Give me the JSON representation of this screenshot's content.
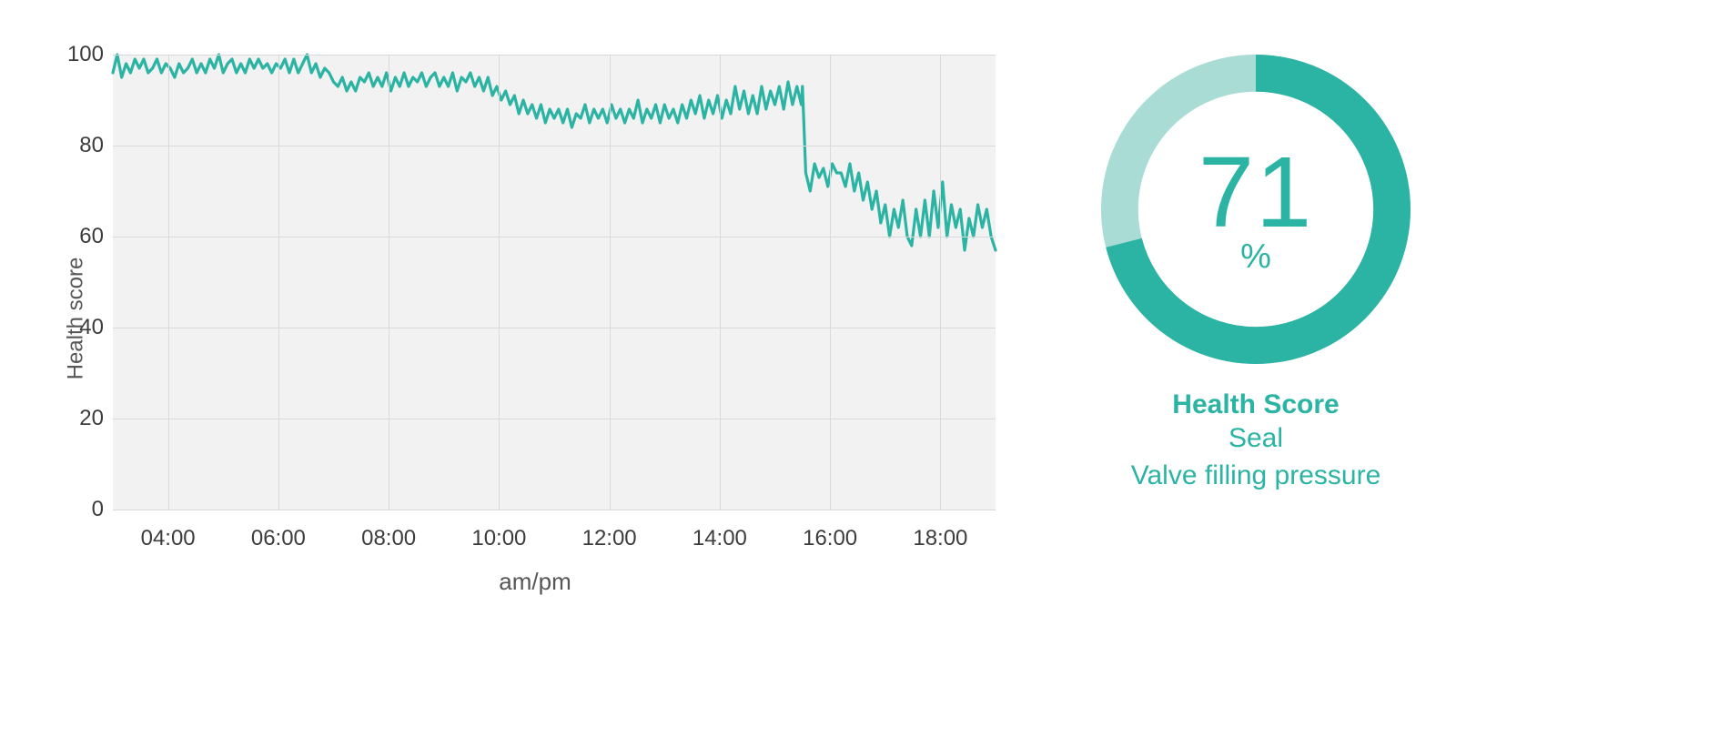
{
  "colors": {
    "accent": "#2bb3a3",
    "accent_light": "#a8dcd5",
    "plot_bg": "#f2f2f2",
    "grid": "#d9d9d9",
    "axis_text": "#3c3c3c",
    "title_text": "#565656",
    "page_bg": "#ffffff"
  },
  "line_chart": {
    "type": "line",
    "ylabel": "Health score",
    "xlabel": "am/pm",
    "label_fontsize": 24,
    "tick_fontsize": 24,
    "tick_fontweight": 500,
    "ylim": [
      0,
      100
    ],
    "yticks": [
      0,
      20,
      40,
      60,
      80,
      100
    ],
    "xlim": [
      3,
      19
    ],
    "xticks": [
      4,
      6,
      8,
      10,
      12,
      14,
      16,
      18
    ],
    "xtick_labels": [
      "04:00",
      "06:00",
      "08:00",
      "10:00",
      "12:00",
      "14:00",
      "16:00",
      "18:00"
    ],
    "line_color": "#2bb3a3",
    "line_width": 3.2,
    "background_color": "#f2f2f2",
    "grid_color": "#d9d9d9",
    "series": {
      "x": [
        3.0,
        3.08,
        3.16,
        3.24,
        3.32,
        3.4,
        3.48,
        3.56,
        3.64,
        3.72,
        3.8,
        3.88,
        3.96,
        4.04,
        4.12,
        4.2,
        4.28,
        4.36,
        4.44,
        4.52,
        4.6,
        4.68,
        4.76,
        4.84,
        4.92,
        5.0,
        5.08,
        5.16,
        5.24,
        5.32,
        5.4,
        5.48,
        5.56,
        5.64,
        5.72,
        5.8,
        5.88,
        5.96,
        6.04,
        6.12,
        6.2,
        6.28,
        6.36,
        6.44,
        6.52,
        6.6,
        6.68,
        6.76,
        6.84,
        6.92,
        7.0,
        7.08,
        7.16,
        7.24,
        7.32,
        7.4,
        7.48,
        7.56,
        7.64,
        7.72,
        7.8,
        7.88,
        7.96,
        8.04,
        8.12,
        8.2,
        8.28,
        8.36,
        8.44,
        8.52,
        8.6,
        8.68,
        8.76,
        8.84,
        8.92,
        9.0,
        9.08,
        9.16,
        9.24,
        9.32,
        9.4,
        9.48,
        9.56,
        9.64,
        9.72,
        9.8,
        9.88,
        9.96,
        10.04,
        10.12,
        10.2,
        10.28,
        10.36,
        10.44,
        10.52,
        10.6,
        10.68,
        10.76,
        10.84,
        10.92,
        11.0,
        11.08,
        11.16,
        11.24,
        11.32,
        11.4,
        11.48,
        11.56,
        11.64,
        11.72,
        11.8,
        11.88,
        11.96,
        12.04,
        12.12,
        12.2,
        12.28,
        12.36,
        12.44,
        12.52,
        12.6,
        12.68,
        12.76,
        12.84,
        12.92,
        13.0,
        13.08,
        13.16,
        13.24,
        13.32,
        13.4,
        13.48,
        13.56,
        13.64,
        13.72,
        13.8,
        13.88,
        13.96,
        14.04,
        14.12,
        14.2,
        14.28,
        14.36,
        14.44,
        14.52,
        14.6,
        14.68,
        14.76,
        14.84,
        14.92,
        15.0,
        15.08,
        15.16,
        15.24,
        15.32,
        15.4,
        15.48,
        15.5,
        15.56,
        15.64,
        15.72,
        15.8,
        15.88,
        15.96,
        16.04,
        16.12,
        16.2,
        16.28,
        16.36,
        16.44,
        16.52,
        16.6,
        16.68,
        16.76,
        16.84,
        16.92,
        17.0,
        17.08,
        17.16,
        17.24,
        17.32,
        17.4,
        17.48,
        17.56,
        17.64,
        17.72,
        17.8,
        17.88,
        17.96,
        18.04,
        18.12,
        18.2,
        18.28,
        18.36,
        18.44,
        18.52,
        18.6,
        18.68,
        18.76,
        18.84,
        18.92,
        19.0
      ],
      "y": [
        96,
        100,
        95,
        98,
        96,
        99,
        97,
        99,
        96,
        97,
        99,
        96,
        98,
        97,
        95,
        98,
        96,
        97,
        99,
        96,
        98,
        96,
        99,
        97,
        100,
        96,
        98,
        99,
        96,
        98,
        96,
        99,
        97,
        99,
        97,
        98,
        96,
        98,
        97,
        99,
        96,
        99,
        96,
        98,
        100,
        96,
        98,
        95,
        97,
        96,
        94,
        93,
        95,
        92,
        94,
        92,
        95,
        94,
        96,
        93,
        95,
        93,
        96,
        92,
        95,
        93,
        96,
        93,
        95,
        94,
        96,
        93,
        95,
        96,
        93,
        95,
        93,
        96,
        92,
        95,
        94,
        96,
        93,
        95,
        92,
        95,
        91,
        93,
        90,
        92,
        89,
        91,
        87,
        90,
        87,
        89,
        86,
        89,
        85,
        88,
        86,
        88,
        85,
        88,
        84,
        87,
        86,
        89,
        85,
        88,
        86,
        88,
        85,
        89,
        86,
        88,
        85,
        88,
        86,
        90,
        85,
        88,
        86,
        89,
        85,
        89,
        86,
        88,
        85,
        89,
        86,
        90,
        87,
        91,
        86,
        90,
        87,
        91,
        86,
        90,
        87,
        93,
        88,
        92,
        87,
        91,
        87,
        93,
        88,
        92,
        89,
        93,
        88,
        94,
        89,
        93,
        89,
        93,
        74,
        70,
        76,
        73,
        75,
        71,
        76,
        74,
        74,
        71,
        76,
        70,
        74,
        68,
        72,
        66,
        70,
        63,
        67,
        60,
        66,
        62,
        68,
        60,
        58,
        66,
        60,
        68,
        60,
        70,
        62,
        72,
        60,
        67,
        62,
        66,
        57,
        64,
        60,
        67,
        62,
        66,
        60,
        57
      ]
    }
  },
  "gauge": {
    "type": "donut",
    "value": 71,
    "unit": "%",
    "start_angle_deg": 0,
    "ring_thickness_ratio": 0.24,
    "fg_color": "#2bb3a3",
    "bg_color": "#a8dcd5",
    "value_fontsize": 110,
    "value_fontweight": 300,
    "unit_fontsize": 38,
    "title": "Health Score",
    "title_fontsize": 30,
    "title_fontweight": 700,
    "subtitle_lines": [
      "Seal",
      "Valve filling pressure"
    ],
    "subtitle_fontsize": 30,
    "text_color": "#2bb3a3"
  }
}
